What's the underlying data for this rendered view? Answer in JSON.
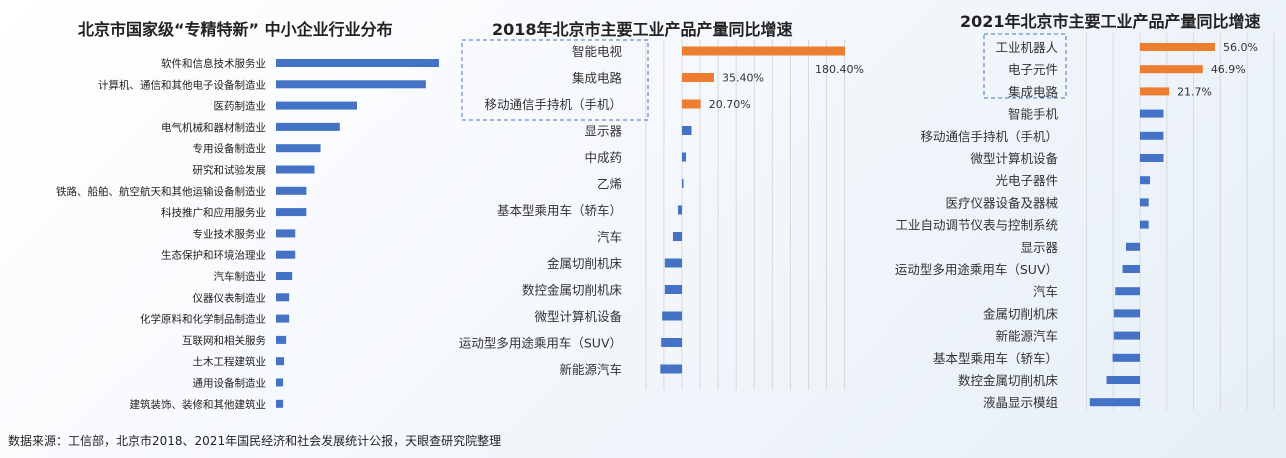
{
  "source_note": "数据来源：工信部，北京市2018、2021年国民经济和社会发展统计公报，天眼查研究院整理",
  "chart_data": [
    {
      "type": "bar",
      "orientation": "horizontal",
      "title": "北京市国家级“专精特新” 中小企业行业分布",
      "categories": [
        "软件和信息技术服务业",
        "计算机、通信和其他电子设备制造业",
        "医药制造业",
        "电气机械和器材制造业",
        "专用设备制造业",
        "研究和试验发展",
        "铁路、船舶、航空航天和其他运输设备制造业",
        "科技推广和应用服务业",
        "专业技术服务业",
        "生态保护和环境治理业",
        "汽车制造业",
        "仪器仪表制造业",
        "化学原料和化学制品制造业",
        "互联网和相关服务",
        "土木工程建筑业",
        "通用设备制造业",
        "建筑装饰、装修和其他建筑业"
      ],
      "values": [
        161,
        148,
        80,
        63,
        44,
        38,
        30,
        30,
        19,
        19,
        16,
        13,
        13,
        10,
        8,
        7,
        7
      ],
      "colors": {
        "bar": "#4472c4"
      },
      "grid": false
    },
    {
      "type": "bar",
      "orientation": "horizontal",
      "title": "2018年北京市主要工业产品产量同比增速",
      "categories": [
        "智能电视",
        "集成电路",
        "移动通信手持机（手机）",
        "显示器",
        "中成药",
        "乙烯",
        "基本型乘用车（轿车）",
        "汽车",
        "金属切削机床",
        "数控金属切削机床",
        "微型计算机设备",
        "运动型多用途乘用车（SUV）",
        "新能源汽车"
      ],
      "values": [
        180.4,
        35.4,
        20.7,
        10.5,
        4.5,
        0.2,
        -4.5,
        -10,
        -19,
        -19,
        -22,
        -23,
        -24
      ],
      "data_labels": [
        "180.40%",
        "35.40%",
        "20.70%",
        "",
        "",
        "",
        "",
        "",
        "",
        "",
        "",
        "",
        ""
      ],
      "highlight_count": 3,
      "colors": {
        "positive_highlight": "#ed7d31",
        "other": "#4472c4",
        "highlight_box": "#4472c4"
      },
      "xlim": [
        -40,
        180
      ],
      "grid": true
    },
    {
      "type": "bar",
      "orientation": "horizontal",
      "title": "2021年北京市主要工业产品产量同比增速",
      "categories": [
        "工业机器人",
        "电子元件",
        "集成电路",
        "智能手机",
        "移动通信手持机（手机）",
        "微型计算机设备",
        "光电子器件",
        "医疗仪器设备及器械",
        "工业自动调节仪表与控制系统",
        "显示器",
        "运动型多用途乘用车（SUV）",
        "汽车",
        "金属切削机床",
        "新能源汽车",
        "基本型乘用车（轿车）",
        "数控金属切削机床",
        "液晶显示模组"
      ],
      "values": [
        56.0,
        46.9,
        21.7,
        17.5,
        17.5,
        17.5,
        7.5,
        6.5,
        6.5,
        -10.5,
        -13,
        -18.5,
        -19.5,
        -19.5,
        -20.5,
        -25,
        -37.5
      ],
      "data_labels": [
        "56.0%",
        "46.9%",
        "21.7%",
        "",
        "",
        "",
        "",
        "",
        "",
        "",
        "",
        "",
        "",
        "",
        "",
        "",
        ""
      ],
      "highlight_count": 3,
      "colors": {
        "positive_highlight": "#ed7d31",
        "other": "#4472c4",
        "highlight_box": "#4472c4"
      },
      "xlim": [
        -40,
        120
      ],
      "grid": true
    }
  ]
}
